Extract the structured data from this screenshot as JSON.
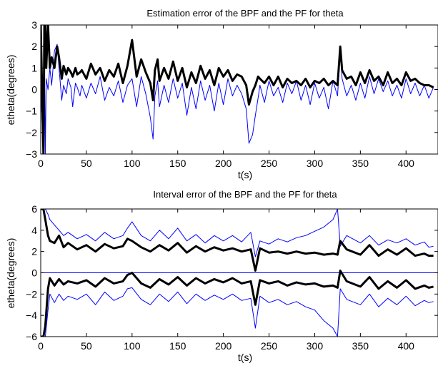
{
  "chart_data": [
    {
      "type": "line",
      "title": "Estimation error of the BPF and the PF for theta",
      "xlabel": "t(s)",
      "ylabel": "etheta(degrees)",
      "xlim": [
        0,
        435
      ],
      "ylim": [
        -3,
        3
      ],
      "xticks": [
        0,
        50,
        100,
        150,
        200,
        250,
        300,
        350,
        400
      ],
      "yticks": [
        -3,
        -2,
        -1,
        0,
        1,
        2,
        3
      ],
      "grid": false,
      "series": [
        {
          "color": "#0000ff",
          "line_weight": "thin",
          "x": [
            0,
            3,
            4,
            5,
            6,
            8,
            10,
            12,
            15,
            18,
            20,
            23,
            25,
            28,
            30,
            33,
            35,
            38,
            40,
            43,
            45,
            50,
            55,
            60,
            65,
            70,
            75,
            80,
            85,
            90,
            95,
            100,
            105,
            110,
            115,
            120,
            123,
            125,
            128,
            130,
            135,
            140,
            145,
            150,
            155,
            160,
            165,
            170,
            175,
            180,
            185,
            190,
            195,
            200,
            205,
            210,
            215,
            220,
            225,
            228,
            232,
            235,
            238,
            240,
            245,
            250,
            255,
            260,
            265,
            270,
            275,
            280,
            285,
            290,
            295,
            300,
            305,
            310,
            315,
            320,
            325,
            328,
            330,
            335,
            340,
            345,
            350,
            355,
            360,
            365,
            370,
            375,
            380,
            385,
            390,
            395,
            400,
            405,
            410,
            415,
            420,
            425,
            430
          ],
          "y": [
            0,
            -3,
            2.5,
            -3,
            0.5,
            0,
            1,
            0.2,
            1.8,
            2.1,
            1.0,
            -0.5,
            0.2,
            -0.2,
            0.5,
            0.1,
            -0.8,
            0.3,
            0.1,
            -0.3,
            0.2,
            -0.4,
            0.3,
            -0.2,
            0.6,
            -0.5,
            0.1,
            -0.3,
            0.4,
            -0.6,
            0.2,
            0.5,
            -0.8,
            0.6,
            -0.2,
            -1.3,
            -2.3,
            -0.3,
            0.4,
            -0.8,
            0.2,
            -0.6,
            0.5,
            -0.4,
            0.3,
            -1.2,
            0.1,
            -0.9,
            0.4,
            -0.5,
            0.2,
            -1.0,
            0.3,
            -0.7,
            0.5,
            -0.3,
            0.2,
            -0.2,
            -0.9,
            -2.5,
            -2.1,
            -1.2,
            -0.4,
            0.2,
            -0.6,
            0.4,
            -0.3,
            0.1,
            -0.6,
            0.3,
            -0.2,
            0.4,
            -0.5,
            0.2,
            -0.7,
            0.3,
            -0.4,
            0.1,
            -0.9,
            0.4,
            -0.3,
            1.8,
            0.5,
            -0.3,
            0.2,
            -0.5,
            0.3,
            -0.4,
            0.6,
            -0.2,
            0.5,
            -0.1,
            0.4,
            -0.3,
            0.2,
            -0.4,
            0.5,
            -0.2,
            0.3,
            -0.3,
            0.2,
            -0.4,
            0.1
          ]
        },
        {
          "color": "#000000",
          "line_weight": "thick",
          "x": [
            0,
            3,
            4,
            5,
            6,
            8,
            10,
            12,
            15,
            18,
            20,
            23,
            25,
            28,
            30,
            33,
            35,
            38,
            40,
            43,
            45,
            50,
            55,
            60,
            65,
            70,
            75,
            80,
            85,
            90,
            95,
            100,
            105,
            110,
            115,
            120,
            123,
            125,
            128,
            130,
            135,
            140,
            145,
            150,
            155,
            160,
            165,
            170,
            175,
            180,
            185,
            190,
            195,
            200,
            205,
            210,
            215,
            220,
            225,
            228,
            232,
            235,
            238,
            240,
            245,
            250,
            255,
            260,
            265,
            270,
            275,
            280,
            285,
            290,
            295,
            300,
            305,
            310,
            315,
            320,
            325,
            328,
            330,
            335,
            340,
            345,
            350,
            355,
            360,
            365,
            370,
            375,
            380,
            385,
            390,
            395,
            400,
            405,
            410,
            415,
            420,
            425,
            430
          ],
          "y": [
            3,
            -3,
            3,
            3,
            1.0,
            3,
            1.0,
            1.5,
            1.0,
            2.0,
            1.5,
            0.5,
            1.1,
            0.7,
            1.0,
            0.8,
            0.6,
            1.0,
            0.7,
            0.8,
            0.9,
            0.5,
            1.2,
            0.7,
            1.0,
            0.4,
            0.9,
            0.6,
            1.2,
            0.3,
            1.1,
            2.3,
            0.6,
            1.4,
            0.8,
            0.3,
            -0.5,
            0.9,
            1.4,
            0.4,
            1.0,
            0.5,
            1.3,
            0.4,
            1.0,
            0.1,
            0.8,
            0.3,
            1.1,
            0.5,
            0.9,
            0.2,
            1.0,
            0.6,
            0.9,
            0.4,
            0.7,
            0.6,
            0.2,
            -0.7,
            -0.1,
            0.2,
            0.6,
            0.5,
            0.3,
            0.6,
            0.2,
            0.6,
            0.1,
            0.5,
            0.3,
            0.4,
            0.2,
            0.5,
            0.1,
            0.4,
            0.3,
            0.5,
            0.2,
            0.4,
            0.2,
            2.0,
            0.9,
            0.5,
            0.6,
            0.2,
            0.8,
            0.3,
            0.9,
            0.4,
            0.6,
            0.2,
            0.8,
            0.3,
            0.5,
            0.2,
            0.8,
            0.4,
            0.5,
            0.3,
            0.2,
            0.2,
            0.1
          ]
        }
      ]
    },
    {
      "type": "line",
      "title": "Interval error of the BPF and the PF for theta",
      "xlabel": "t(s)",
      "ylabel": "etheta(degrees)",
      "xlim": [
        0,
        435
      ],
      "ylim": [
        -6,
        6
      ],
      "xticks": [
        0,
        50,
        100,
        150,
        200,
        250,
        300,
        350,
        400
      ],
      "yticks": [
        -6,
        -4,
        -2,
        0,
        2,
        4,
        6
      ],
      "grid": false,
      "reference_line": {
        "y": 0,
        "color": "#0000ff"
      },
      "series": [
        {
          "color": "#0000ff",
          "line_weight": "thin",
          "x": [
            0,
            3,
            5,
            8,
            10,
            15,
            20,
            25,
            30,
            40,
            50,
            60,
            70,
            80,
            90,
            95,
            100,
            110,
            120,
            130,
            140,
            150,
            160,
            170,
            180,
            190,
            200,
            210,
            220,
            230,
            235,
            240,
            250,
            260,
            270,
            280,
            290,
            300,
            310,
            320,
            325,
            328,
            335,
            350,
            360,
            370,
            380,
            390,
            400,
            410,
            420,
            425,
            430
          ],
          "y": [
            6,
            6,
            6,
            5.5,
            5.0,
            4.5,
            4.0,
            3.5,
            3.8,
            3.2,
            3.6,
            3.0,
            3.8,
            3.2,
            3.5,
            4.2,
            4.8,
            3.5,
            3.0,
            4.0,
            3.2,
            4.2,
            3.0,
            3.6,
            2.8,
            3.5,
            3.0,
            3.5,
            2.9,
            3.8,
            1.5,
            3.0,
            2.7,
            3.2,
            2.9,
            3.3,
            3.5,
            3.9,
            4.3,
            5.0,
            6.0,
            2.5,
            3.5,
            2.8,
            3.5,
            2.6,
            3.1,
            2.8,
            3.2,
            2.6,
            2.9,
            2.4,
            2.5
          ]
        },
        {
          "color": "#000000",
          "line_weight": "thick",
          "x": [
            0,
            3,
            5,
            8,
            10,
            15,
            20,
            25,
            30,
            40,
            50,
            60,
            70,
            80,
            90,
            95,
            100,
            110,
            120,
            130,
            140,
            150,
            160,
            170,
            180,
            190,
            200,
            210,
            220,
            230,
            235,
            240,
            250,
            260,
            270,
            280,
            290,
            300,
            310,
            320,
            325,
            328,
            335,
            350,
            360,
            370,
            380,
            390,
            400,
            410,
            420,
            425,
            430
          ],
          "y": [
            6,
            6,
            5.0,
            3.5,
            3.0,
            2.8,
            3.5,
            2.4,
            2.8,
            2.2,
            2.6,
            2.0,
            2.7,
            2.3,
            2.5,
            3.2,
            3.0,
            2.4,
            2.0,
            2.6,
            2.1,
            2.8,
            1.9,
            2.5,
            2.0,
            2.4,
            2.1,
            2.3,
            2.0,
            2.2,
            0.2,
            2.3,
            1.9,
            2.0,
            1.8,
            2.0,
            1.8,
            1.9,
            1.7,
            1.8,
            1.7,
            3.0,
            2.2,
            1.7,
            2.6,
            1.6,
            2.2,
            1.7,
            2.3,
            1.6,
            1.8,
            1.6,
            1.6
          ]
        },
        {
          "color": "#000000",
          "line_weight": "thick",
          "x": [
            0,
            3,
            5,
            8,
            10,
            15,
            20,
            25,
            30,
            40,
            50,
            60,
            70,
            80,
            90,
            95,
            100,
            110,
            120,
            130,
            140,
            150,
            160,
            170,
            180,
            190,
            200,
            210,
            220,
            230,
            235,
            240,
            250,
            260,
            270,
            280,
            290,
            300,
            310,
            320,
            325,
            328,
            335,
            350,
            360,
            370,
            380,
            390,
            400,
            410,
            420,
            425,
            430
          ],
          "y": [
            -6,
            -6,
            -5.0,
            -1.5,
            -0.5,
            -1.2,
            -0.6,
            -1.1,
            -0.8,
            -1.0,
            -0.7,
            -1.3,
            -0.5,
            -1.0,
            -0.8,
            -0.2,
            0.0,
            -1.0,
            -1.4,
            -0.6,
            -1.1,
            -0.4,
            -1.2,
            -0.5,
            -1.0,
            -0.6,
            -0.9,
            -0.5,
            -1.0,
            -0.8,
            -3.0,
            -0.7,
            -1.0,
            -0.8,
            -1.2,
            -0.9,
            -1.1,
            -1.0,
            -1.3,
            -1.2,
            -1.4,
            0.2,
            -0.8,
            -1.3,
            -0.4,
            -1.5,
            -0.8,
            -1.4,
            -0.7,
            -1.5,
            -1.2,
            -1.4,
            -1.3
          ]
        },
        {
          "color": "#0000ff",
          "line_weight": "thin",
          "x": [
            0,
            3,
            5,
            8,
            10,
            15,
            20,
            25,
            30,
            40,
            50,
            60,
            70,
            80,
            90,
            95,
            100,
            110,
            120,
            130,
            140,
            150,
            160,
            170,
            180,
            190,
            200,
            210,
            220,
            230,
            235,
            240,
            250,
            260,
            270,
            280,
            290,
            300,
            310,
            320,
            325,
            328,
            335,
            350,
            360,
            370,
            380,
            390,
            400,
            410,
            420,
            425,
            430
          ],
          "y": [
            -6,
            -6,
            -6,
            -3.5,
            -2.0,
            -2.8,
            -2.0,
            -2.6,
            -2.2,
            -2.5,
            -2.0,
            -3.0,
            -1.8,
            -2.6,
            -2.2,
            -1.5,
            -1.4,
            -2.5,
            -3.0,
            -2.0,
            -2.7,
            -1.8,
            -2.9,
            -2.0,
            -2.6,
            -2.1,
            -2.5,
            -2.0,
            -2.6,
            -2.4,
            -5.2,
            -2.2,
            -2.8,
            -2.5,
            -3.0,
            -2.7,
            -3.2,
            -3.5,
            -4.5,
            -5.2,
            -6.0,
            -1.5,
            -2.5,
            -3.0,
            -2.0,
            -3.2,
            -2.4,
            -3.0,
            -2.2,
            -3.1,
            -2.6,
            -2.8,
            -2.7
          ]
        }
      ]
    }
  ]
}
